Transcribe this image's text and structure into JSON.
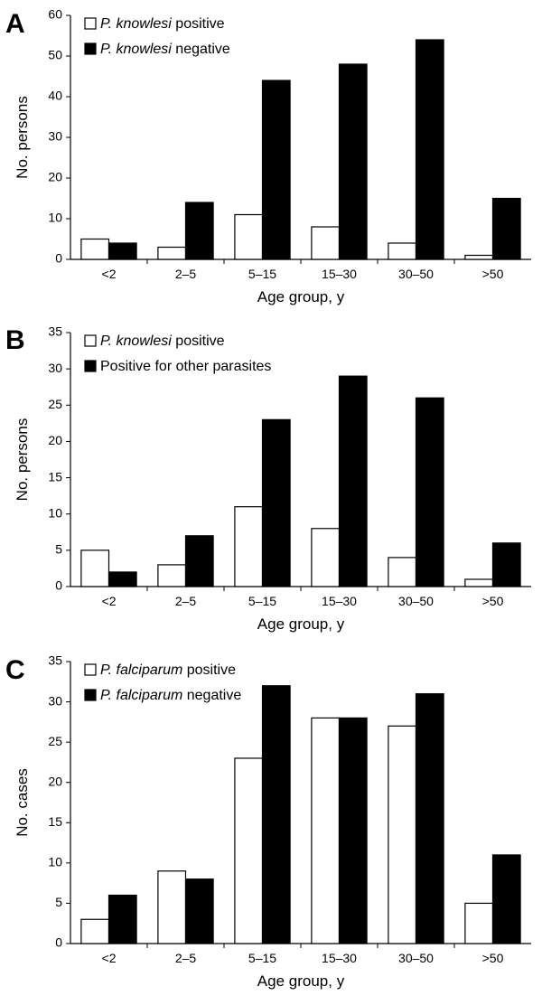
{
  "chart_data": [
    {
      "type": "bar",
      "panel_label": "A",
      "ylabel": "No. persons",
      "xlabel": "Age group, y",
      "ylim": [
        0,
        60
      ],
      "yticks": [
        0,
        10,
        20,
        30,
        40,
        50,
        60
      ],
      "categories": [
        "<2",
        "2–5",
        "5–15",
        "15–30",
        "30–50",
        ">50"
      ],
      "legend_position": "top-left",
      "series": [
        {
          "name_italic": "P. knowlesi",
          "name_rest": " positive",
          "color": "#ffffff",
          "values": [
            5,
            3,
            11,
            8,
            4,
            1
          ]
        },
        {
          "name_italic": "P. knowlesi",
          "name_rest": " negative",
          "color": "#000000",
          "values": [
            4,
            14,
            44,
            48,
            54,
            15
          ]
        }
      ]
    },
    {
      "type": "bar",
      "panel_label": "B",
      "ylabel": "No. persons",
      "xlabel": "Age group, y",
      "ylim": [
        0,
        35
      ],
      "yticks": [
        0,
        5,
        10,
        15,
        20,
        25,
        30,
        35
      ],
      "categories": [
        "<2",
        "2–5",
        "5–15",
        "15–30",
        "30–50",
        ">50"
      ],
      "legend_position": "top-left",
      "series": [
        {
          "name_italic": "P. knowlesi",
          "name_rest": " positive",
          "color": "#ffffff",
          "values": [
            5,
            3,
            11,
            8,
            4,
            1
          ]
        },
        {
          "name_italic": "",
          "name_rest": "Positive for other parasites",
          "color": "#000000",
          "values": [
            2,
            7,
            23,
            29,
            26,
            6
          ]
        }
      ]
    },
    {
      "type": "bar",
      "panel_label": "C",
      "ylabel": "No. cases",
      "xlabel": "Age group, y",
      "ylim": [
        0,
        35
      ],
      "yticks": [
        0,
        5,
        10,
        15,
        20,
        25,
        30,
        35
      ],
      "categories": [
        "<2",
        "2–5",
        "5–15",
        "15–30",
        "30–50",
        ">50"
      ],
      "legend_position": "top-left",
      "series": [
        {
          "name_italic": "P. falciparum",
          "name_rest": " positive",
          "color": "#ffffff",
          "values": [
            3,
            9,
            23,
            28,
            27,
            5
          ]
        },
        {
          "name_italic": "P. falciparum",
          "name_rest": " negative",
          "color": "#000000",
          "values": [
            6,
            8,
            32,
            28,
            31,
            11
          ]
        }
      ]
    }
  ]
}
